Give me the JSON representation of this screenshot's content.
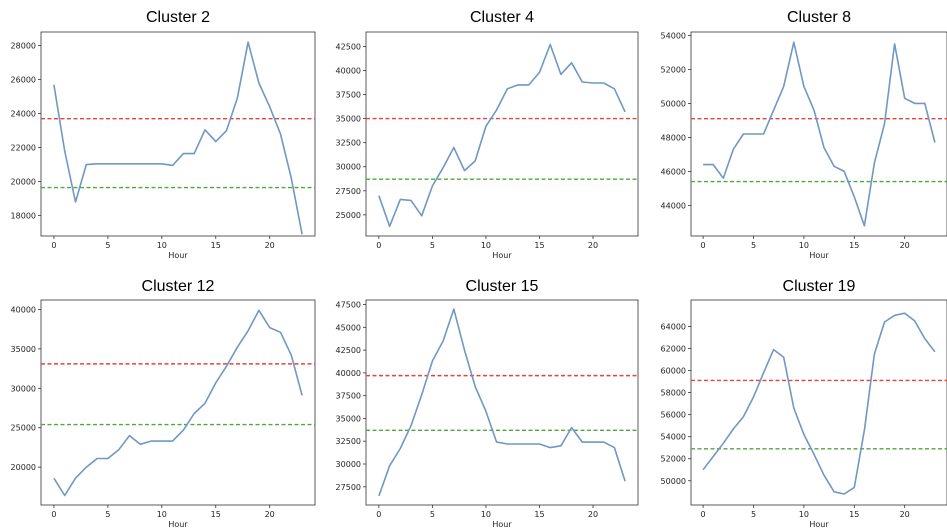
{
  "chart_data": [
    {
      "type": "line",
      "title": "Cluster 2",
      "xlabel": "Hour",
      "ylabel": "",
      "xlim": [
        -1.2,
        24.2
      ],
      "ylim": [
        16800,
        28800
      ],
      "xticks": [
        0,
        5,
        10,
        15,
        20
      ],
      "yticks": [
        18000,
        20000,
        22000,
        24000,
        26000,
        28000
      ],
      "x": [
        0,
        1,
        2,
        3,
        4,
        5,
        6,
        7,
        8,
        9,
        10,
        11,
        12,
        13,
        14,
        15,
        16,
        17,
        18,
        19,
        20,
        21,
        22,
        23
      ],
      "values": [
        25700,
        21800,
        18800,
        21000,
        21050,
        21050,
        21050,
        21050,
        21050,
        21050,
        21050,
        20950,
        21650,
        21650,
        23050,
        22350,
        23000,
        24900,
        28200,
        25800,
        24400,
        22800,
        20200,
        16900
      ],
      "hlines": [
        {
          "y": 23700,
          "color": "#e8423c"
        },
        {
          "y": 19650,
          "color": "#4fa83d"
        }
      ],
      "grid": false
    },
    {
      "type": "line",
      "title": "Cluster 4",
      "xlabel": "Hour",
      "ylabel": "",
      "xlim": [
        -1.2,
        24.2
      ],
      "ylim": [
        22800,
        44000
      ],
      "xticks": [
        0,
        5,
        10,
        15,
        20
      ],
      "yticks": [
        25000,
        27500,
        30000,
        32500,
        35000,
        37500,
        40000,
        42500
      ],
      "x": [
        0,
        1,
        2,
        3,
        4,
        5,
        6,
        7,
        8,
        9,
        10,
        11,
        12,
        13,
        14,
        15,
        16,
        17,
        18,
        19,
        20,
        21,
        22,
        23
      ],
      "values": [
        27000,
        23800,
        26600,
        26500,
        24900,
        28000,
        29900,
        32000,
        29600,
        30600,
        34200,
        35900,
        38100,
        38500,
        38500,
        39800,
        42700,
        39600,
        40800,
        38800,
        38700,
        38700,
        38100,
        35700
      ],
      "hlines": [
        {
          "y": 35000,
          "color": "#e8423c"
        },
        {
          "y": 28700,
          "color": "#4fa83d"
        }
      ],
      "grid": false
    },
    {
      "type": "line",
      "title": "Cluster 8",
      "xlabel": "Hour",
      "ylabel": "",
      "xlim": [
        -1.2,
        24.2
      ],
      "ylim": [
        42200,
        54200
      ],
      "xticks": [
        0,
        5,
        10,
        15,
        20
      ],
      "yticks": [
        44000,
        46000,
        48000,
        50000,
        52000,
        54000
      ],
      "x": [
        0,
        1,
        2,
        3,
        4,
        5,
        6,
        7,
        8,
        9,
        10,
        11,
        12,
        13,
        14,
        15,
        16,
        17,
        18,
        19,
        20,
        21,
        22,
        23
      ],
      "values": [
        46400,
        46400,
        45600,
        47300,
        48200,
        48200,
        48200,
        49600,
        51000,
        53600,
        51000,
        49600,
        47400,
        46300,
        46000,
        44500,
        42800,
        46500,
        48800,
        53500,
        50300,
        50000,
        50000,
        47700
      ],
      "hlines": [
        {
          "y": 49100,
          "color": "#e8423c"
        },
        {
          "y": 45400,
          "color": "#4fa83d"
        }
      ],
      "grid": false
    },
    {
      "type": "line",
      "title": "Cluster 12",
      "xlabel": "Hour",
      "ylabel": "",
      "xlim": [
        -1.2,
        24.2
      ],
      "ylim": [
        15200,
        41200
      ],
      "xticks": [
        0,
        5,
        10,
        15,
        20
      ],
      "yticks": [
        20000,
        25000,
        30000,
        35000,
        40000
      ],
      "x": [
        0,
        1,
        2,
        3,
        4,
        5,
        6,
        7,
        8,
        9,
        10,
        11,
        12,
        13,
        14,
        15,
        16,
        17,
        18,
        19,
        20,
        21,
        22,
        23
      ],
      "values": [
        18600,
        16400,
        18600,
        20000,
        21100,
        21100,
        22200,
        24000,
        22900,
        23300,
        23300,
        23300,
        24700,
        26800,
        28100,
        30700,
        32800,
        35200,
        37300,
        39900,
        37700,
        37100,
        34200,
        29100
      ],
      "hlines": [
        {
          "y": 33100,
          "color": "#e8423c"
        },
        {
          "y": 25400,
          "color": "#4fa83d"
        }
      ],
      "grid": false
    },
    {
      "type": "line",
      "title": "Cluster 15",
      "xlabel": "Hour",
      "ylabel": "",
      "xlim": [
        -1.2,
        24.2
      ],
      "ylim": [
        25500,
        48000
      ],
      "xticks": [
        0,
        5,
        10,
        15,
        20
      ],
      "yticks": [
        27500,
        30000,
        32500,
        35000,
        37500,
        40000,
        42500,
        45000,
        47500
      ],
      "x": [
        0,
        1,
        2,
        3,
        4,
        5,
        6,
        7,
        8,
        9,
        10,
        11,
        12,
        13,
        14,
        15,
        16,
        17,
        18,
        19,
        20,
        21,
        22,
        23
      ],
      "values": [
        26500,
        29800,
        31700,
        34200,
        37600,
        41300,
        43500,
        47000,
        42500,
        38500,
        35800,
        32400,
        32200,
        32200,
        32200,
        32200,
        31800,
        32000,
        34000,
        32400,
        32400,
        32400,
        31800,
        28100
      ],
      "hlines": [
        {
          "y": 39700,
          "color": "#e8423c"
        },
        {
          "y": 33700,
          "color": "#4fa83d"
        }
      ],
      "grid": false
    },
    {
      "type": "line",
      "title": "Cluster 19",
      "xlabel": "Hour",
      "ylabel": "",
      "xlim": [
        -1.2,
        24.2
      ],
      "ylim": [
        47800,
        66400
      ],
      "xticks": [
        0,
        5,
        10,
        15,
        20
      ],
      "yticks": [
        50000,
        52000,
        54000,
        56000,
        58000,
        60000,
        62000,
        64000
      ],
      "x": [
        0,
        1,
        2,
        3,
        4,
        5,
        6,
        7,
        8,
        9,
        10,
        11,
        12,
        13,
        14,
        15,
        16,
        17,
        18,
        19,
        20,
        21,
        22,
        23
      ],
      "values": [
        51000,
        52200,
        53400,
        54700,
        55800,
        57600,
        59800,
        61900,
        61200,
        56600,
        54200,
        52400,
        50500,
        49000,
        48800,
        49400,
        54600,
        61500,
        64400,
        65000,
        65200,
        64500,
        62900,
        61700
      ],
      "hlines": [
        {
          "y": 59100,
          "color": "#e8423c"
        },
        {
          "y": 52900,
          "color": "#4fa83d"
        }
      ],
      "grid": false
    }
  ],
  "colors": {
    "line": "#6f98c3",
    "mean": "#e8423c",
    "baseline": "#4fa83d",
    "axis": "#333333"
  }
}
